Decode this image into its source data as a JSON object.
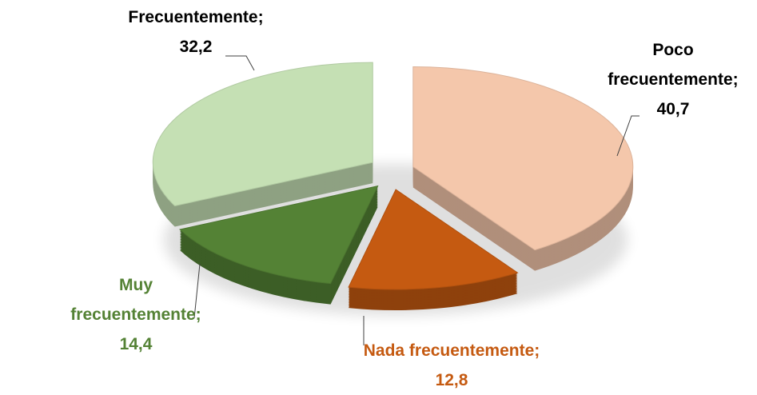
{
  "chart_data": {
    "type": "pie",
    "categories": [
      "Poco frecuentemente;",
      "Nada frecuentemente;",
      "Muy frecuentemente;",
      "Frecuentemente;"
    ],
    "values": [
      40.7,
      12.8,
      14.4,
      32.2
    ],
    "value_labels": [
      "40,7",
      "12,8",
      "14,4",
      "32,2"
    ],
    "colors": [
      "#f4c7ab",
      "#c55a11",
      "#548235",
      "#c5e0b4"
    ],
    "label_colors": [
      "#000000",
      "#c55a11",
      "#548235",
      "#000000"
    ]
  }
}
